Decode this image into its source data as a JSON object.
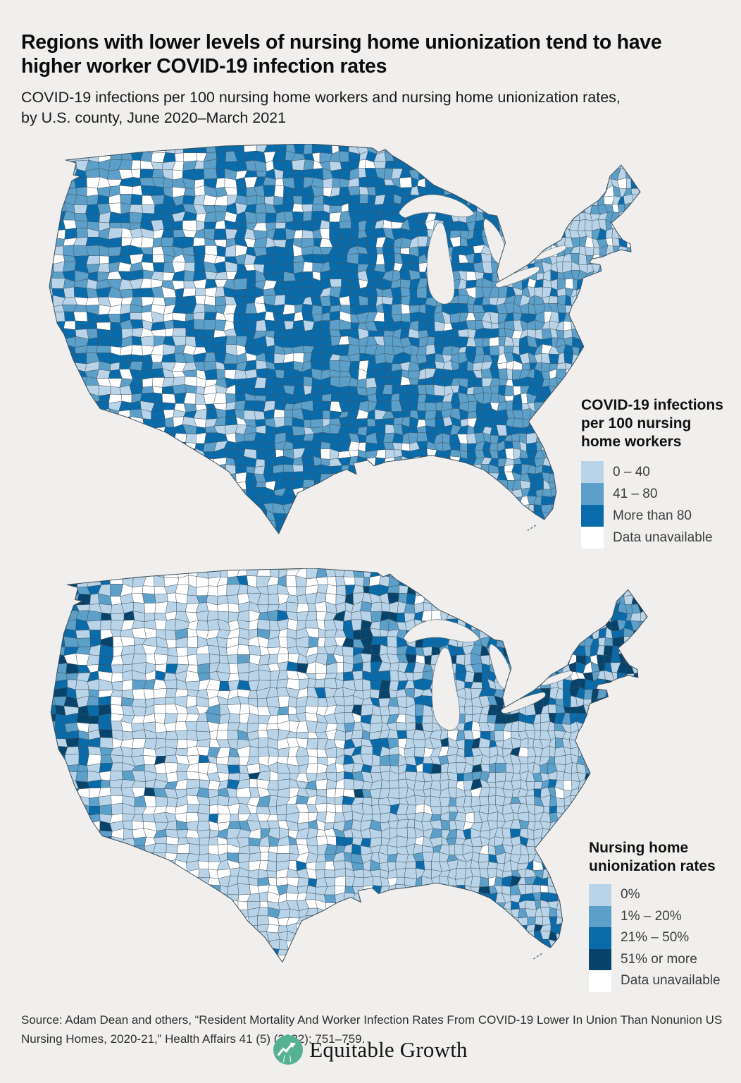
{
  "page": {
    "background": "#f0efed"
  },
  "header": {
    "title": "Regions with lower levels of nursing home unionization tend to have higher worker COVID-19 infection rates",
    "subtitle": "COVID-19 infections per 100 nursing home workers and nursing home unionization rates, by U.S. county, June 2020–March 2021",
    "subtitle_lines": [
      "COVID-19 infections per 100 nursing home workers and nursing home unionization rates,",
      "by U.S. county, June 2020–March 2021"
    ]
  },
  "chart_data": [
    {
      "type": "choropleth",
      "geography": "U.S. counties, lower 48 states",
      "title": "COVID-19 infections per 100 nursing home workers",
      "title_lines": [
        "COVID-19 infections",
        "per 100 nursing",
        "home workers"
      ],
      "legend_position": "right, beside northeast coast",
      "legend": [
        {
          "label": "0 – 40",
          "color": "#b9d4e8"
        },
        {
          "label": "41 – 80",
          "color": "#5c9fc9"
        },
        {
          "label": "More than 80",
          "color": "#0a6bab"
        },
        {
          "label": "Data unavailable",
          "color": "#ffffff"
        }
      ],
      "regional_patterns": [
        "Most counties nationwide fall in the 41–80 or More-than-80 ranges (medium/dark blue)",
        "Highest infection rates (more than 80) dense across the South, Midwest, Plains and Mountain West",
        "Lower rates (0–40, light blue) concentrated in New England and parts of the Pacific Northwest coast",
        "Scattered data-unavailable (white) counties mainly in the rural interior West and Louisiana delta"
      ]
    },
    {
      "type": "choropleth",
      "geography": "U.S. counties, lower 48 states",
      "title": "Nursing home unionization rates",
      "title_lines": [
        "Nursing home",
        "unionization rates"
      ],
      "legend_position": "right, beside southeast coast",
      "legend": [
        {
          "label": "0%",
          "color": "#b9d4e8"
        },
        {
          "label": "1% – 20%",
          "color": "#5c9fc9"
        },
        {
          "label": "21% – 50%",
          "color": "#0a6bab"
        },
        {
          "label": "51% or more",
          "color": "#07436b"
        },
        {
          "label": "Data unavailable",
          "color": "#ffffff"
        }
      ],
      "regional_patterns": [
        "Most counties nationwide are 0% unionization (light blue)",
        "High unionization (51% or more, darkest navy) concentrated along the West Coast — Washington, Oregon and coastal California",
        "High-to-moderate unionization (21–50%) clusters in the Northeast (New York, New England) and Upper Midwest (Minnesota, Wisconsin, Michigan)",
        "Scattered 21–50% counties in central and southern Florida",
        "Data-unavailable (white) counties scattered through the Plains and interior West"
      ]
    }
  ],
  "footer": {
    "source": "Source: Adam Dean and others, “Resident Mortality And Worker Infection Rates From COVID-19 Lower In Union Than Nonunion US Nursing Homes, 2020-21,” Health Affairs 41 (5) (2022): 751–759.",
    "logo_text": "Equitable Growth",
    "logo_color": "#56b193"
  }
}
